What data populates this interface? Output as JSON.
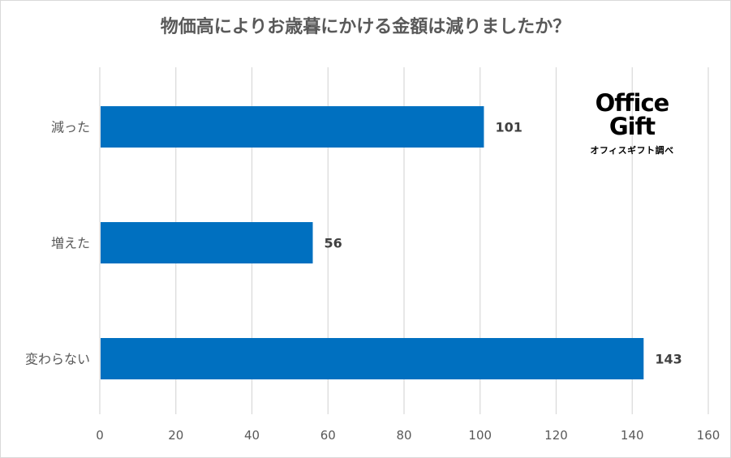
{
  "title": "物価高によりお歳暮にかける金額は減りましたか？",
  "logo": {
    "line1": "Office",
    "line2": "Gift",
    "subtitle": "オフィスギフト調べ"
  },
  "colors": {
    "bar": "#0070c0",
    "grid": "#d9d9d9",
    "text": "#595959",
    "label": "#404040"
  },
  "chart_data": {
    "type": "bar",
    "orientation": "horizontal",
    "categories": [
      "減った",
      "増えた",
      "変わらない"
    ],
    "values": [
      101,
      56,
      143
    ],
    "xlim": [
      0,
      160
    ],
    "xticks": [
      0,
      20,
      40,
      60,
      80,
      100,
      120,
      140,
      160
    ],
    "grid": true,
    "data_labels": true
  }
}
